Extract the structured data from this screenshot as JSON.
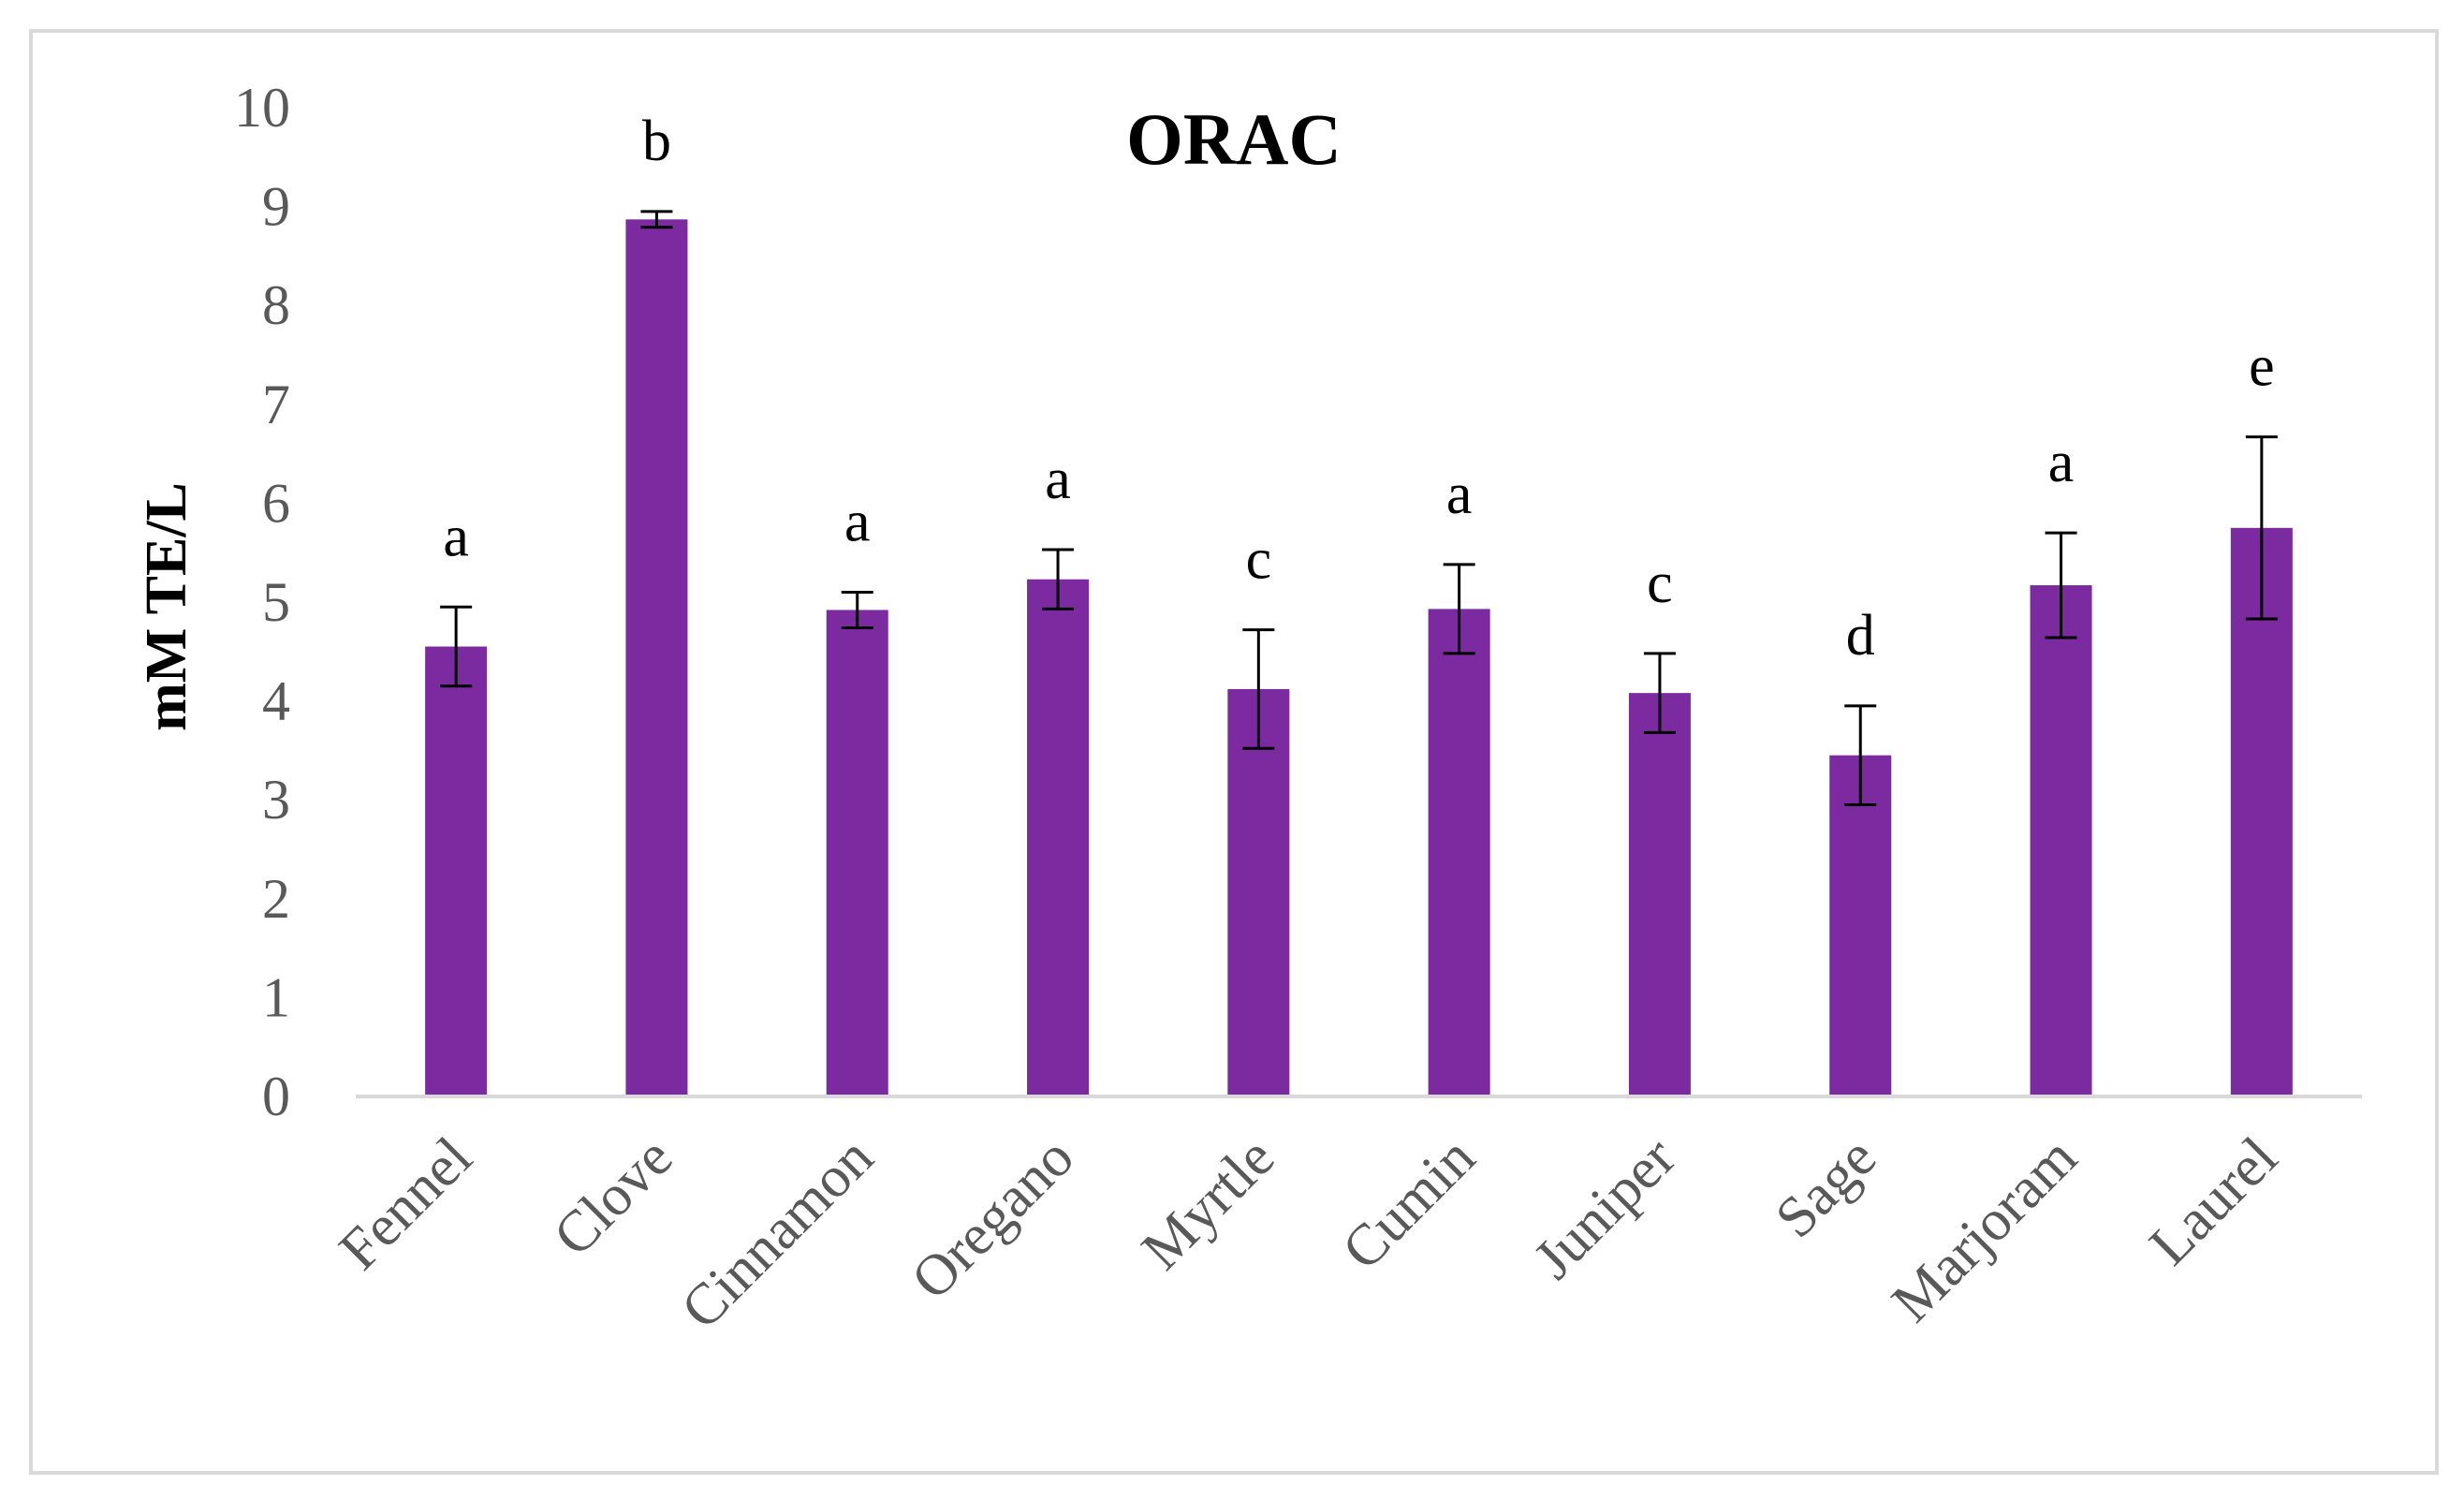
{
  "chart_data": {
    "type": "bar",
    "title": "ORAC",
    "xlabel": "",
    "ylabel": "mM TE/L",
    "ylim": [
      0,
      10
    ],
    "yticks": [
      "0",
      "1",
      "2",
      "3",
      "4",
      "5",
      "6",
      "7",
      "8",
      "9",
      "10"
    ],
    "grid": false,
    "legend": "none",
    "bar_color": "#7b2a9f",
    "categories": [
      "Fennel",
      "Clove",
      "Cinnamon",
      "Oregano",
      "Myrtle",
      "Cumin",
      "Juniper",
      "Sage",
      "Marjoram",
      "Laurel"
    ],
    "values": [
      4.55,
      8.87,
      4.92,
      5.23,
      4.12,
      4.93,
      4.08,
      3.45,
      5.17,
      5.75
    ],
    "errors": [
      0.4,
      0.08,
      0.18,
      0.3,
      0.6,
      0.45,
      0.4,
      0.5,
      0.53,
      0.92
    ],
    "significance_labels": [
      "a",
      "b",
      "a",
      "a",
      "c",
      "a",
      "c",
      "d",
      "a",
      "e"
    ]
  }
}
